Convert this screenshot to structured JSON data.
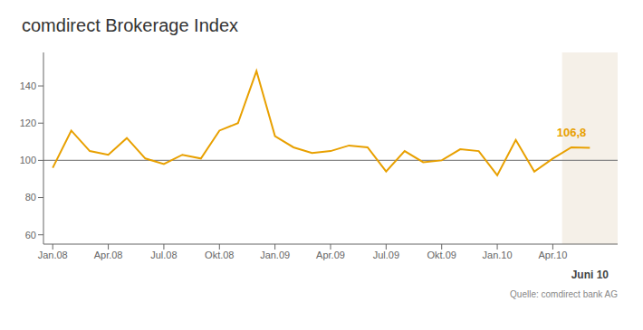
{
  "chart_data": {
    "type": "line",
    "title": "comdirect Brokerage Index",
    "source": "Quelle: comdirect bank AG",
    "x": [
      0,
      1,
      2,
      3,
      4,
      5,
      6,
      7,
      8,
      9,
      10,
      11,
      12,
      13,
      14,
      15,
      16,
      17,
      18,
      19,
      20,
      21,
      22,
      23,
      24,
      25,
      26,
      27,
      28,
      29
    ],
    "values": [
      96,
      116,
      105,
      103,
      112,
      101,
      98,
      103,
      101,
      116,
      120,
      148,
      113,
      107,
      104,
      105,
      108,
      107,
      94,
      105,
      99,
      100,
      106,
      105,
      92,
      111,
      94,
      101,
      107,
      106.8
    ],
    "color": "#E8A000",
    "xlim": [
      -0.5,
      30.5
    ],
    "xticks": [
      {
        "value": 0,
        "label": "Jan.08"
      },
      {
        "value": 3,
        "label": "Apr.08"
      },
      {
        "value": 6,
        "label": "Jul.08"
      },
      {
        "value": 9,
        "label": "Okt.08"
      },
      {
        "value": 12,
        "label": "Jan.09"
      },
      {
        "value": 15,
        "label": "Apr.09"
      },
      {
        "value": 18,
        "label": "Jul.09"
      },
      {
        "value": 21,
        "label": "Okt.09"
      },
      {
        "value": 24,
        "label": "Jan.10"
      },
      {
        "value": 27,
        "label": "Apr.10"
      }
    ],
    "ylim": [
      55,
      158
    ],
    "yticks": [
      60,
      80,
      100,
      120,
      140
    ],
    "reference_y": 100,
    "highlight_x": [
      27.5,
      30.5
    ],
    "annotations": [
      {
        "text": "106,8",
        "x": 29,
        "y": 106.8
      }
    ],
    "x_annotations": [
      {
        "text": "Juni 10",
        "x": 29
      }
    ],
    "grid": false
  }
}
